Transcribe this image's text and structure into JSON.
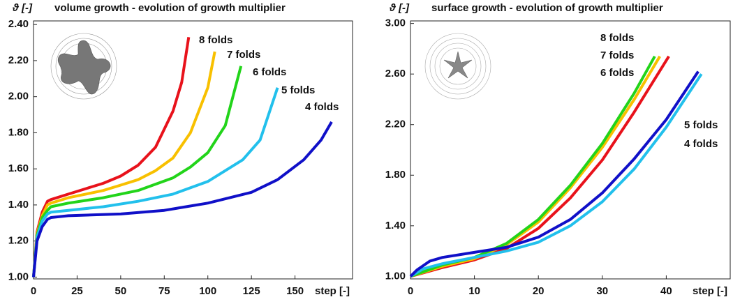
{
  "chart_data": [
    {
      "type": "line",
      "title": "volume growth - evolution of growth multiplier",
      "ylabel": "ϑ [-]",
      "xlabel": "step [-]",
      "xlim": [
        0,
        183
      ],
      "ylim": [
        0.99,
        2.42
      ],
      "xticks": [
        0,
        25,
        50,
        75,
        100,
        125,
        150
      ],
      "yticks": [
        {
          "value": 1.0,
          "label": "1.00"
        },
        {
          "value": 1.2,
          "label": "1.20"
        },
        {
          "value": 1.4,
          "label": "1.40"
        },
        {
          "value": 1.6,
          "label": "1.60"
        },
        {
          "value": 1.8,
          "label": "1.80"
        },
        {
          "value": 2.0,
          "label": "2.00"
        },
        {
          "value": 2.2,
          "label": "2.20"
        },
        {
          "value": 2.4,
          "label": "2.40"
        }
      ],
      "series": [
        {
          "name": "8 folds",
          "color": "#e8121b",
          "x": [
            0,
            2,
            5,
            8,
            10,
            20,
            30,
            40,
            50,
            60,
            70,
            80,
            85,
            89
          ],
          "values": [
            1.0,
            1.25,
            1.36,
            1.42,
            1.43,
            1.46,
            1.49,
            1.52,
            1.56,
            1.62,
            1.72,
            1.92,
            2.08,
            2.33
          ]
        },
        {
          "name": "7 folds",
          "color": "#f8c000",
          "x": [
            0,
            2,
            5,
            8,
            10,
            20,
            30,
            40,
            50,
            60,
            70,
            80,
            90,
            100,
            104
          ],
          "values": [
            1.0,
            1.24,
            1.34,
            1.4,
            1.41,
            1.44,
            1.46,
            1.48,
            1.51,
            1.54,
            1.59,
            1.66,
            1.8,
            2.05,
            2.25
          ]
        },
        {
          "name": "6 folds",
          "color": "#22d41a",
          "x": [
            0,
            2,
            5,
            8,
            10,
            20,
            40,
            60,
            80,
            90,
            100,
            110,
            119
          ],
          "values": [
            1.0,
            1.23,
            1.33,
            1.37,
            1.39,
            1.41,
            1.44,
            1.48,
            1.55,
            1.61,
            1.69,
            1.84,
            2.17
          ]
        },
        {
          "name": "5 folds",
          "color": "#22c0ec",
          "x": [
            0,
            2,
            5,
            8,
            10,
            20,
            40,
            60,
            80,
            100,
            120,
            130,
            140
          ],
          "values": [
            1.0,
            1.22,
            1.31,
            1.35,
            1.36,
            1.37,
            1.39,
            1.42,
            1.46,
            1.53,
            1.65,
            1.76,
            2.05
          ]
        },
        {
          "name": "4 folds",
          "color": "#1010c8",
          "x": [
            0,
            2,
            5,
            8,
            10,
            20,
            50,
            75,
            100,
            125,
            140,
            155,
            165,
            171
          ],
          "values": [
            1.0,
            1.2,
            1.28,
            1.32,
            1.33,
            1.34,
            1.35,
            1.37,
            1.41,
            1.47,
            1.54,
            1.65,
            1.76,
            1.86
          ]
        }
      ]
    },
    {
      "type": "line",
      "title": "surface growth - evolution of growth multiplier",
      "ylabel": "ϑ [-]",
      "xlabel": "step [-]",
      "xlim": [
        0,
        50
      ],
      "ylim": [
        0.98,
        3.02
      ],
      "xticks": [
        0,
        10,
        20,
        30,
        40
      ],
      "yticks": [
        {
          "value": 1.0,
          "label": "1.00"
        },
        {
          "value": 1.4,
          "label": "1.40"
        },
        {
          "value": 1.8,
          "label": "1.80"
        },
        {
          "value": 2.2,
          "label": "2.20"
        },
        {
          "value": 2.6,
          "label": "2.60"
        },
        {
          "value": 3.0,
          "label": "3.00"
        }
      ],
      "series": [
        {
          "name": "8 folds",
          "color": "#e8121b",
          "x": [
            0,
            5,
            10,
            15,
            20,
            25,
            30,
            35,
            40.4
          ],
          "values": [
            1.0,
            1.07,
            1.13,
            1.22,
            1.38,
            1.62,
            1.92,
            2.3,
            2.74
          ]
        },
        {
          "name": "7 folds",
          "color": "#f8c000",
          "x": [
            0,
            5,
            10,
            15,
            20,
            25,
            30,
            35,
            39
          ],
          "values": [
            1.0,
            1.08,
            1.14,
            1.25,
            1.43,
            1.7,
            2.02,
            2.4,
            2.74
          ]
        },
        {
          "name": "6 folds",
          "color": "#22d41a",
          "x": [
            0,
            5,
            10,
            15,
            20,
            25,
            30,
            35,
            38.2
          ],
          "values": [
            1.0,
            1.09,
            1.15,
            1.26,
            1.45,
            1.72,
            2.05,
            2.45,
            2.74
          ]
        },
        {
          "name": "5 folds",
          "color": "#22c0ec",
          "x": [
            0,
            2,
            5,
            10,
            15,
            20,
            25,
            30,
            35,
            40,
            45.5
          ],
          "values": [
            1.0,
            1.06,
            1.1,
            1.15,
            1.2,
            1.27,
            1.4,
            1.59,
            1.85,
            2.18,
            2.6
          ]
        },
        {
          "name": "4 folds",
          "color": "#1010c8",
          "x": [
            0,
            1,
            3,
            5,
            10,
            15,
            20,
            25,
            30,
            35,
            40,
            45
          ],
          "values": [
            1.0,
            1.05,
            1.12,
            1.15,
            1.19,
            1.23,
            1.31,
            1.45,
            1.66,
            1.93,
            2.24,
            2.62
          ]
        }
      ]
    }
  ]
}
